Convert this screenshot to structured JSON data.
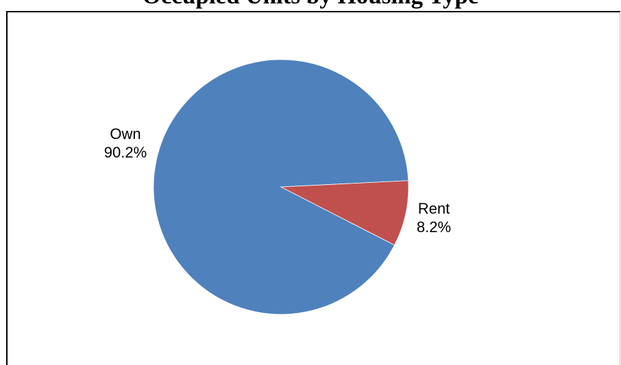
{
  "chart_data": {
    "type": "pie",
    "title": "Occupied Units by Housing Type",
    "categories": [
      "Own",
      "Rent"
    ],
    "values": [
      90.2,
      8.2
    ],
    "value_labels": [
      "90.2%",
      "8.2%"
    ],
    "colors": [
      "#4F81BD",
      "#C0504D"
    ],
    "legend": "none",
    "grid": false
  }
}
